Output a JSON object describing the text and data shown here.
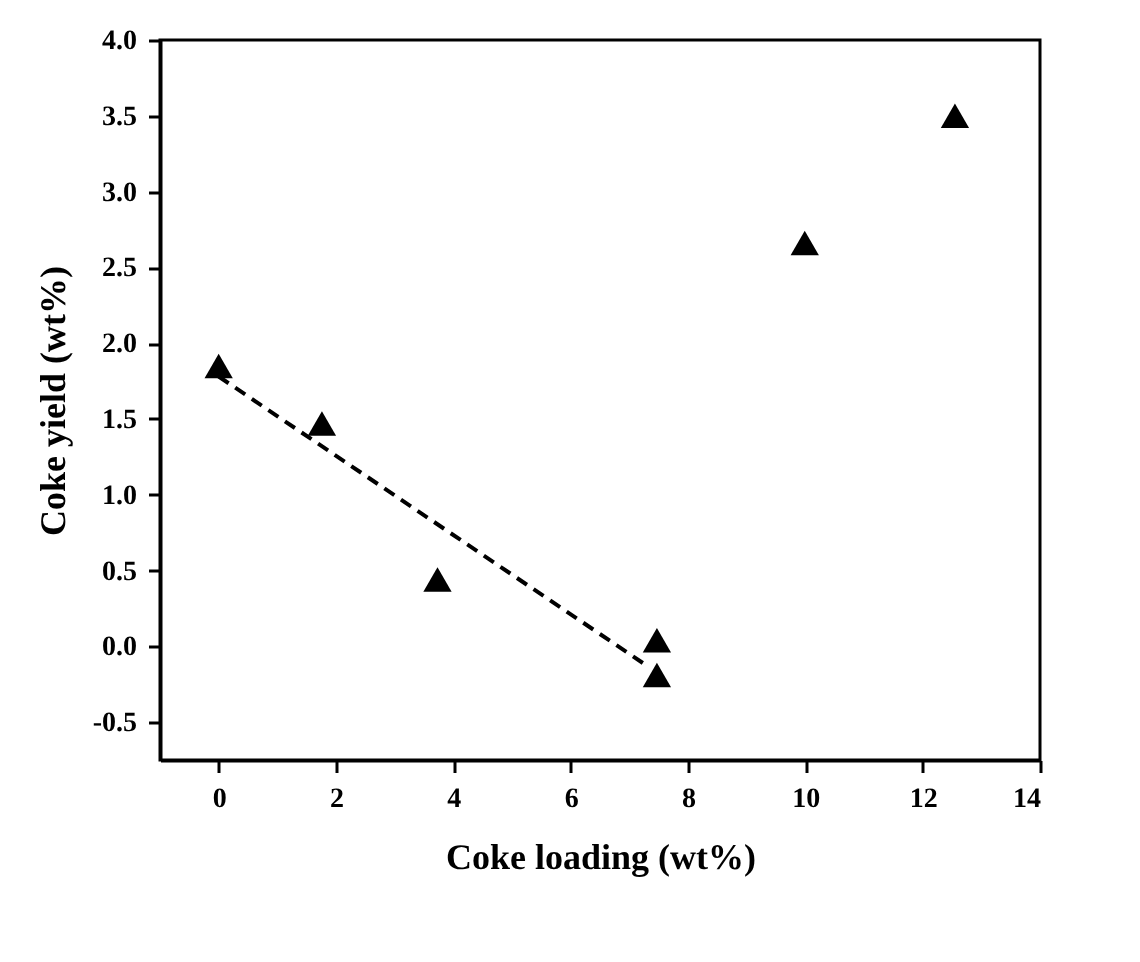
{
  "chart_data": {
    "type": "scatter",
    "xlabel": "Coke loading (wt%)",
    "ylabel": "Coke yield (wt%)",
    "marker": "triangle",
    "grid": false,
    "xlim": [
      -1,
      14
    ],
    "xticks": [
      0,
      2,
      4,
      6,
      8,
      10,
      12,
      14
    ],
    "ylim": [
      -0.75,
      4.0
    ],
    "yticks": [
      {
        "value": -0.5,
        "label": "-0.5"
      },
      {
        "value": 0,
        "label": "0.0"
      },
      {
        "value": 0.5,
        "label": "0.5"
      },
      {
        "value": 1,
        "label": "1.0"
      },
      {
        "value": 1.5,
        "label": "1.5"
      },
      {
        "value": 2,
        "label": "2.0"
      },
      {
        "value": 2.5,
        "label": "2.5"
      },
      {
        "value": 3,
        "label": "3.0"
      },
      {
        "value": 3.5,
        "label": "3.5"
      },
      {
        "value": 4,
        "label": "4.0"
      }
    ],
    "series": [
      {
        "color": "#000000",
        "x": [
          0,
          1.76,
          3.73,
          7.47,
          7.47,
          9.99,
          12.55
        ],
        "values": [
          1.85,
          1.47,
          0.44,
          0.04,
          -0.19,
          2.66,
          3.5
        ]
      },
      {
        "type": "line",
        "color": "#000000",
        "line_style": "dashed",
        "marker": "none",
        "x": [
          0,
          7.23
        ],
        "values": [
          1.78,
          -0.11
        ]
      }
    ]
  }
}
